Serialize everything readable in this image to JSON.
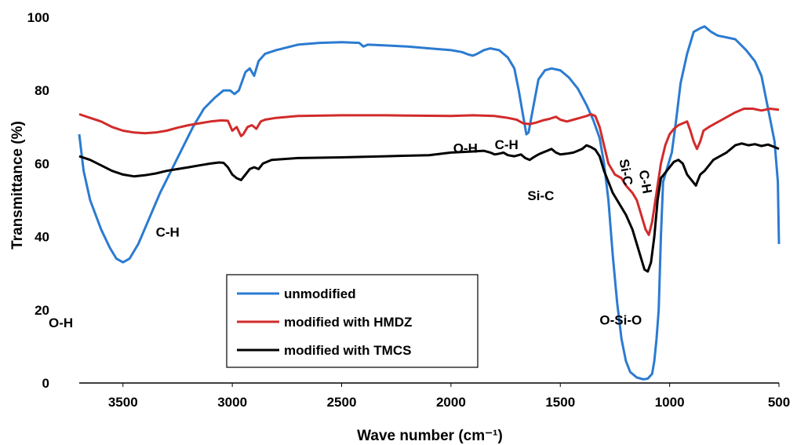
{
  "chart_data": {
    "type": "line",
    "xlabel": "Wave number (cm⁻¹)",
    "ylabel": "Transmittance (%)",
    "xlim": [
      3700,
      500
    ],
    "ylim": [
      0,
      100
    ],
    "x_reversed": true,
    "x_ticks": [
      3500,
      3000,
      2500,
      2000,
      1500,
      1000,
      500
    ],
    "y_ticks": [
      0,
      20,
      40,
      60,
      80,
      100
    ],
    "grid": false,
    "legend_position": "bottom-left",
    "series": [
      {
        "name": "unmodified",
        "color": "#2b7bd1",
        "points": [
          [
            3700,
            68
          ],
          [
            3680,
            58
          ],
          [
            3650,
            50
          ],
          [
            3600,
            42
          ],
          [
            3560,
            37
          ],
          [
            3530,
            34
          ],
          [
            3500,
            33
          ],
          [
            3470,
            34
          ],
          [
            3430,
            38
          ],
          [
            3380,
            45
          ],
          [
            3330,
            52
          ],
          [
            3280,
            58
          ],
          [
            3230,
            64
          ],
          [
            3180,
            70
          ],
          [
            3130,
            75
          ],
          [
            3080,
            78
          ],
          [
            3040,
            80
          ],
          [
            3010,
            80
          ],
          [
            2990,
            79
          ],
          [
            2970,
            80
          ],
          [
            2940,
            85
          ],
          [
            2920,
            86
          ],
          [
            2900,
            84
          ],
          [
            2880,
            88
          ],
          [
            2850,
            90
          ],
          [
            2800,
            91
          ],
          [
            2700,
            92.5
          ],
          [
            2600,
            93
          ],
          [
            2500,
            93.2
          ],
          [
            2420,
            93
          ],
          [
            2400,
            92
          ],
          [
            2380,
            92.5
          ],
          [
            2300,
            92.3
          ],
          [
            2200,
            92
          ],
          [
            2100,
            91.5
          ],
          [
            2000,
            91
          ],
          [
            1950,
            90.5
          ],
          [
            1920,
            89.8
          ],
          [
            1900,
            89.5
          ],
          [
            1880,
            90
          ],
          [
            1850,
            91
          ],
          [
            1820,
            91.5
          ],
          [
            1780,
            91
          ],
          [
            1740,
            89
          ],
          [
            1710,
            86
          ],
          [
            1690,
            80
          ],
          [
            1670,
            73
          ],
          [
            1655,
            68
          ],
          [
            1645,
            68.5
          ],
          [
            1625,
            75
          ],
          [
            1600,
            83
          ],
          [
            1570,
            85.5
          ],
          [
            1540,
            86
          ],
          [
            1500,
            85.5
          ],
          [
            1460,
            83.5
          ],
          [
            1420,
            80.5
          ],
          [
            1380,
            76
          ],
          [
            1350,
            72
          ],
          [
            1320,
            67
          ],
          [
            1300,
            60
          ],
          [
            1280,
            50
          ],
          [
            1260,
            35
          ],
          [
            1240,
            22
          ],
          [
            1220,
            12
          ],
          [
            1200,
            6
          ],
          [
            1180,
            3
          ],
          [
            1150,
            1.5
          ],
          [
            1120,
            1
          ],
          [
            1100,
            1.2
          ],
          [
            1080,
            2.5
          ],
          [
            1070,
            6
          ],
          [
            1060,
            12
          ],
          [
            1050,
            20
          ],
          [
            1040,
            40
          ],
          [
            1030,
            55
          ],
          [
            1010,
            59
          ],
          [
            990,
            63
          ],
          [
            970,
            72
          ],
          [
            950,
            82
          ],
          [
            920,
            90
          ],
          [
            890,
            96
          ],
          [
            860,
            97
          ],
          [
            840,
            97.5
          ],
          [
            810,
            96
          ],
          [
            780,
            95
          ],
          [
            700,
            94
          ],
          [
            650,
            91
          ],
          [
            610,
            88
          ],
          [
            580,
            84
          ],
          [
            560,
            78
          ],
          [
            540,
            72
          ],
          [
            520,
            66
          ],
          [
            505,
            55
          ],
          [
            500,
            38
          ]
        ]
      },
      {
        "name": "modified with HMDZ",
        "color": "#d22b2b",
        "points": [
          [
            3700,
            73.5
          ],
          [
            3650,
            72.5
          ],
          [
            3600,
            71.5
          ],
          [
            3550,
            70
          ],
          [
            3500,
            69
          ],
          [
            3450,
            68.5
          ],
          [
            3400,
            68.3
          ],
          [
            3350,
            68.5
          ],
          [
            3300,
            69
          ],
          [
            3250,
            69.8
          ],
          [
            3200,
            70.5
          ],
          [
            3150,
            71
          ],
          [
            3100,
            71.5
          ],
          [
            3050,
            71.8
          ],
          [
            3020,
            71.7
          ],
          [
            3000,
            69
          ],
          [
            2980,
            70
          ],
          [
            2960,
            67.5
          ],
          [
            2950,
            68
          ],
          [
            2930,
            70
          ],
          [
            2910,
            70.5
          ],
          [
            2890,
            69.5
          ],
          [
            2870,
            71.5
          ],
          [
            2850,
            72
          ],
          [
            2800,
            72.5
          ],
          [
            2700,
            73
          ],
          [
            2500,
            73.2
          ],
          [
            2300,
            73.2
          ],
          [
            2000,
            73
          ],
          [
            1900,
            73.2
          ],
          [
            1800,
            73
          ],
          [
            1740,
            72.5
          ],
          [
            1700,
            72
          ],
          [
            1670,
            71
          ],
          [
            1640,
            70.8
          ],
          [
            1610,
            71.2
          ],
          [
            1580,
            71.8
          ],
          [
            1550,
            72.2
          ],
          [
            1520,
            72.8
          ],
          [
            1500,
            72
          ],
          [
            1470,
            71.5
          ],
          [
            1440,
            72
          ],
          [
            1410,
            72.5
          ],
          [
            1380,
            73
          ],
          [
            1360,
            73.5
          ],
          [
            1340,
            73
          ],
          [
            1320,
            70
          ],
          [
            1300,
            65
          ],
          [
            1280,
            60
          ],
          [
            1250,
            57
          ],
          [
            1220,
            56
          ],
          [
            1200,
            54
          ],
          [
            1170,
            52
          ],
          [
            1150,
            50
          ],
          [
            1130,
            46
          ],
          [
            1110,
            42
          ],
          [
            1095,
            40.5
          ],
          [
            1080,
            44
          ],
          [
            1060,
            52
          ],
          [
            1040,
            60
          ],
          [
            1020,
            65
          ],
          [
            1000,
            68
          ],
          [
            980,
            69.5
          ],
          [
            960,
            70.5
          ],
          [
            940,
            71
          ],
          [
            920,
            71.5
          ],
          [
            905,
            69
          ],
          [
            890,
            66
          ],
          [
            875,
            64
          ],
          [
            860,
            66
          ],
          [
            845,
            69
          ],
          [
            820,
            70
          ],
          [
            790,
            71
          ],
          [
            760,
            72
          ],
          [
            730,
            73
          ],
          [
            700,
            74
          ],
          [
            660,
            75
          ],
          [
            620,
            75
          ],
          [
            580,
            74.5
          ],
          [
            540,
            75
          ],
          [
            500,
            74.7
          ]
        ]
      },
      {
        "name": "modified with TMCS",
        "color": "#000000",
        "points": [
          [
            3700,
            62
          ],
          [
            3650,
            61
          ],
          [
            3600,
            59.5
          ],
          [
            3550,
            58
          ],
          [
            3500,
            57
          ],
          [
            3450,
            56.5
          ],
          [
            3400,
            56.8
          ],
          [
            3350,
            57.3
          ],
          [
            3300,
            58
          ],
          [
            3250,
            58.5
          ],
          [
            3200,
            59
          ],
          [
            3150,
            59.5
          ],
          [
            3100,
            60
          ],
          [
            3060,
            60.3
          ],
          [
            3040,
            60.2
          ],
          [
            3020,
            59
          ],
          [
            3000,
            57
          ],
          [
            2980,
            56
          ],
          [
            2960,
            55.5
          ],
          [
            2940,
            57
          ],
          [
            2920,
            58.5
          ],
          [
            2900,
            59
          ],
          [
            2880,
            58.5
          ],
          [
            2860,
            60
          ],
          [
            2820,
            61
          ],
          [
            2700,
            61.5
          ],
          [
            2500,
            61.7
          ],
          [
            2300,
            62
          ],
          [
            2100,
            62.3
          ],
          [
            2000,
            63
          ],
          [
            1900,
            63.3
          ],
          [
            1850,
            63.5
          ],
          [
            1820,
            63
          ],
          [
            1800,
            62.5
          ],
          [
            1780,
            62.7
          ],
          [
            1760,
            63
          ],
          [
            1740,
            62.3
          ],
          [
            1710,
            62
          ],
          [
            1680,
            62.5
          ],
          [
            1660,
            61.5
          ],
          [
            1640,
            61
          ],
          [
            1620,
            61.8
          ],
          [
            1600,
            62.5
          ],
          [
            1580,
            63
          ],
          [
            1560,
            63.5
          ],
          [
            1540,
            64
          ],
          [
            1520,
            63
          ],
          [
            1500,
            62.5
          ],
          [
            1470,
            62.7
          ],
          [
            1440,
            63
          ],
          [
            1420,
            63.5
          ],
          [
            1400,
            64
          ],
          [
            1380,
            65
          ],
          [
            1360,
            64.5
          ],
          [
            1340,
            63.8
          ],
          [
            1320,
            62
          ],
          [
            1300,
            58
          ],
          [
            1280,
            55
          ],
          [
            1260,
            52
          ],
          [
            1240,
            50
          ],
          [
            1220,
            48
          ],
          [
            1200,
            46
          ],
          [
            1170,
            42
          ],
          [
            1150,
            38
          ],
          [
            1130,
            34
          ],
          [
            1115,
            31
          ],
          [
            1100,
            30.5
          ],
          [
            1085,
            33
          ],
          [
            1070,
            40
          ],
          [
            1055,
            50
          ],
          [
            1040,
            56
          ],
          [
            1020,
            57.5
          ],
          [
            1000,
            59
          ],
          [
            980,
            60.5
          ],
          [
            960,
            61
          ],
          [
            940,
            60
          ],
          [
            920,
            57
          ],
          [
            900,
            55.5
          ],
          [
            880,
            54
          ],
          [
            860,
            57
          ],
          [
            840,
            58
          ],
          [
            820,
            59.5
          ],
          [
            800,
            61
          ],
          [
            770,
            62
          ],
          [
            740,
            63
          ],
          [
            720,
            64
          ],
          [
            700,
            65
          ],
          [
            670,
            65.5
          ],
          [
            640,
            65
          ],
          [
            610,
            65.3
          ],
          [
            580,
            64.8
          ],
          [
            550,
            65.2
          ],
          [
            520,
            64.5
          ],
          [
            500,
            64
          ]
        ]
      }
    ],
    "annotations": [
      {
        "text": "O-H",
        "x": 3700,
        "y": 20
      },
      {
        "text": "C-H",
        "x": 3350,
        "y": 40
      },
      {
        "text": "O-H",
        "x": 1990,
        "y": 63
      },
      {
        "text": "C-H",
        "x": 1800,
        "y": 64
      },
      {
        "text": "Si-C",
        "x": 1650,
        "y": 50
      },
      {
        "text": "Si-C",
        "x": 1230,
        "y": 61
      },
      {
        "text": "C-H",
        "x": 1140,
        "y": 58
      },
      {
        "text": "O-Si-O",
        "x": 1320,
        "y": 16
      }
    ]
  }
}
